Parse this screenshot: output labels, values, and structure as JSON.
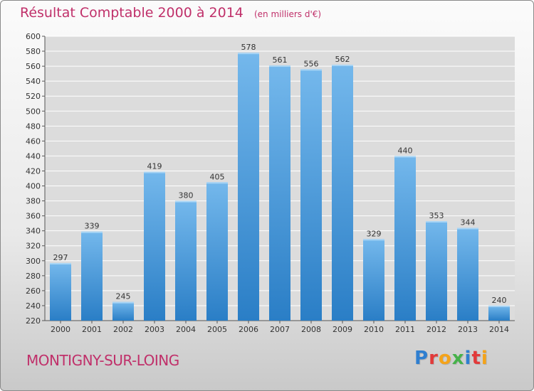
{
  "header": {
    "title": "Résultat Comptable 2000 à 2014",
    "subtitle": "(en milliers d'€)"
  },
  "footer": {
    "city": "MONTIGNY-SUR-LOING",
    "logo": "Proxiti",
    "logo_colors": [
      "#2f7fd0",
      "#e23a3a",
      "#f4a31a",
      "#46b24a",
      "#2f7fd0",
      "#e23a3a",
      "#f4a31a"
    ]
  },
  "colors": {
    "title": "#c0306a",
    "bar_top": "#74b8ec",
    "bar_bottom": "#2a7ec6",
    "grid": "#ffffff",
    "plot_background": "#dcdcdc"
  },
  "chart_data": {
    "type": "bar",
    "title": "Résultat Comptable 2000 à 2014",
    "subtitle": "(en milliers d'€)",
    "categories": [
      "2000",
      "2001",
      "2002",
      "2003",
      "2004",
      "2005",
      "2006",
      "2007",
      "2008",
      "2009",
      "2010",
      "2011",
      "2012",
      "2013",
      "2014"
    ],
    "values": [
      297,
      339,
      245,
      419,
      380,
      405,
      578,
      561,
      556,
      562,
      329,
      440,
      353,
      344,
      240
    ],
    "ylim": [
      220,
      600
    ],
    "yticks": [
      220,
      240,
      260,
      280,
      300,
      320,
      340,
      360,
      380,
      400,
      420,
      440,
      460,
      480,
      500,
      520,
      540,
      560,
      580,
      600
    ],
    "grid": true,
    "xlabel": "",
    "ylabel": ""
  }
}
